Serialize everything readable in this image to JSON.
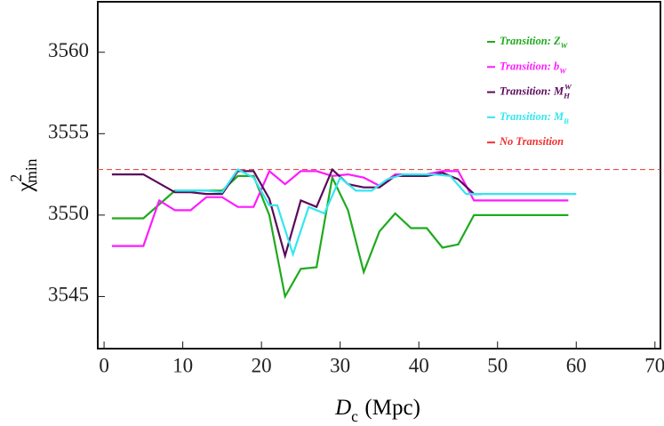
{
  "chart_data": {
    "type": "line",
    "xlabel": {
      "symbol": "D",
      "sub": "c",
      "unit": "(Mpc)"
    },
    "ylabel": {
      "symbol": "χ",
      "sup": "2",
      "sub": "min"
    },
    "xlim": [
      -0.8,
      70.7
    ],
    "xticks": [
      0,
      10,
      20,
      30,
      40,
      50,
      60,
      70
    ],
    "ylim": [
      3541.8,
      3563.1
    ],
    "yticks": [
      3545,
      3550,
      3555,
      3560
    ],
    "series": [
      {
        "name": "Transition: ",
        "symbol": "Z",
        "sub": "W",
        "color": "#1faa1f",
        "x": [
          1,
          5,
          9,
          15,
          17,
          19,
          21,
          23,
          25,
          27,
          29,
          31,
          33,
          35,
          37,
          39,
          41,
          43,
          45,
          47,
          59
        ],
        "values": [
          3549.8,
          3549.8,
          3551.5,
          3551.5,
          3552.4,
          3552.4,
          3550,
          3545,
          3546.7,
          3546.8,
          3552.3,
          3550.3,
          3546.5,
          3549,
          3550.1,
          3549.2,
          3549.2,
          3548,
          3548.2,
          3550,
          3550
        ]
      },
      {
        "name": "Transition: ",
        "symbol": "b",
        "sub": "W",
        "color": "#ff1aff",
        "x": [
          1,
          5,
          7,
          9,
          11,
          13,
          15,
          17,
          19,
          21,
          23,
          25,
          27,
          29,
          31,
          33,
          35,
          37,
          39,
          41,
          43,
          45,
          47,
          59
        ],
        "values": [
          3548.1,
          3548.1,
          3550.9,
          3550.3,
          3550.3,
          3551.1,
          3551.1,
          3550.5,
          3550.5,
          3552.7,
          3551.9,
          3552.7,
          3552.7,
          3552.4,
          3552.5,
          3552.3,
          3551.8,
          3552.5,
          3552.5,
          3552.5,
          3552.7,
          3552.7,
          3550.9,
          3550.9
        ]
      },
      {
        "name": "Transition: ",
        "symbol": "M",
        "sub": "H",
        "sup": "W",
        "color": "#5a0a5a",
        "x": [
          1,
          5,
          9,
          11,
          13,
          15,
          17,
          19,
          21,
          23,
          25,
          27,
          29,
          31,
          33,
          35,
          37,
          39,
          41,
          43,
          45,
          47,
          48
        ],
        "values": [
          3552.5,
          3552.5,
          3551.4,
          3551.4,
          3551.3,
          3551.3,
          3552.7,
          3552.7,
          3551,
          3547.5,
          3550.9,
          3550.5,
          3552.8,
          3551.9,
          3551.7,
          3551.7,
          3552.4,
          3552.4,
          3552.4,
          3552.6,
          3552.2,
          3551.3,
          3551.3
        ]
      },
      {
        "name": "Transition: ",
        "symbol": "M",
        "sub": "B",
        "color": "#33e6f0",
        "x": [
          9,
          13,
          15,
          17,
          19,
          21,
          22,
          24,
          26,
          28,
          30,
          32,
          34,
          36,
          38,
          42,
          44,
          46,
          60
        ],
        "values": [
          3551.5,
          3551.5,
          3551.4,
          3552.8,
          3552.3,
          3550.6,
          3550.6,
          3547.6,
          3550.5,
          3550.1,
          3552.3,
          3551.5,
          3551.5,
          3552.2,
          3552.5,
          3552.5,
          3552.4,
          3551.3,
          3551.3
        ]
      }
    ],
    "reference_line": {
      "name": "No Transition",
      "value": 3552.8,
      "color": "#f03030",
      "style": "dashed"
    }
  }
}
